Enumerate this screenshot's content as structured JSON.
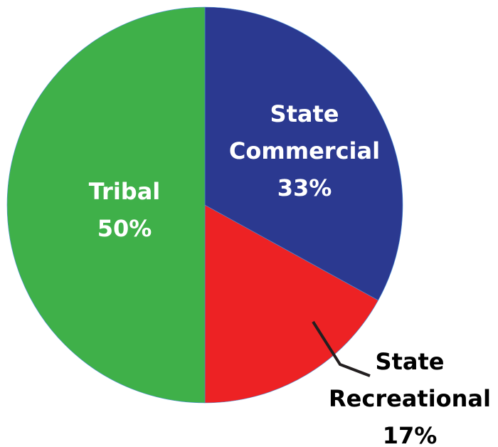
{
  "chart_data": {
    "type": "pie",
    "categories": [
      "State Commercial",
      "State Recreational",
      "Tribal"
    ],
    "values": [
      33,
      17,
      50
    ],
    "value_labels": [
      "33%",
      "17%",
      "50%"
    ],
    "colors": [
      "#2b3990",
      "#ed2224",
      "#3fb049"
    ]
  }
}
